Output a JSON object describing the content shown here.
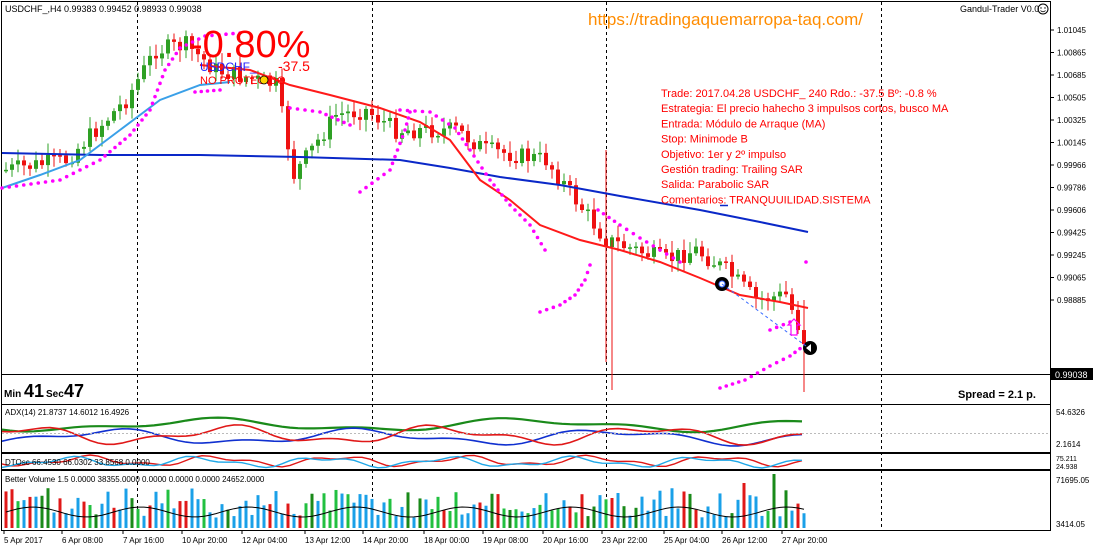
{
  "main": {
    "header": "USDCHF_,H4  0.99383 0.99452 0.98933 0.99038",
    "watermark": "https://tradingaquemarropa-taq.com/",
    "indicator_name": "Gandul-Trader V0.0",
    "big_percent": "-0.80%",
    "symbol_label": "USDCHF_",
    "pips": "-37.5",
    "no_protegido": "NO PROTEGIDO",
    "price_labels": [
      "1.01045",
      "1.00865",
      "1.00685",
      "1.00505",
      "1.00325",
      "1.00145",
      "0.99966",
      "0.99786",
      "0.99606",
      "0.99425",
      "0.99245",
      "0.99065",
      "0.98885"
    ],
    "current_price": "0.99038",
    "timer": {
      "min_label": "Min",
      "min": "41",
      "sec_label": "Sec",
      "sec": "47"
    },
    "spread": "Spread = 2.1 p.",
    "trade_info": [
      "Trade: 2017.04.28 USDCHF_ 240  Rdo.: -37.5  Bº: -0.8 %",
      "Estrategia: El precio hahecho 3 impulsos cortos, busco MA",
      "Entrada: Módulo de Arraque (MA)",
      "Stop: Minimode B",
      "Objetivo: 1er y 2º impulso",
      "Gestión trading: Trailing SAR",
      "Salida: Parabolic SAR",
      "Comentarios: TRANQUUILIDAD.SISTEMA"
    ]
  },
  "adx": {
    "label": "ADX(14) 21.8737 14.6012 16.4926",
    "scale": [
      "54.6326",
      "2.1614"
    ]
  },
  "dtosc": {
    "label": "DTOsc 66.4530 66.0302 33.8568 0.0000",
    "scale": [
      "75.211",
      "24.938"
    ]
  },
  "volume": {
    "label": "Better Volume 1.5 0.0000 38355.0000 0.0000 0.0000 0.0000 24652.0000",
    "scale": [
      "71695.05",
      "3414.05"
    ]
  },
  "time_axis": [
    "5 Apr 2017",
    "6 Apr 08:00",
    "7 Apr 16:00",
    "10 Apr 20:00",
    "12 Apr 04:00",
    "13 Apr 12:00",
    "14 Apr 20:00",
    "18 Apr 00:00",
    "19 Apr 08:00",
    "20 Apr 16:00",
    "23 Apr 22:00",
    "25 Apr 04:00",
    "26 Apr 12:00",
    "27 Apr 20:00"
  ],
  "colors": {
    "bull": "#2ea024",
    "bear": "#ee1111",
    "ma_fast": "#ff0000",
    "ma_mid": "#3aa0e8",
    "ma_slow": "#0a28c8",
    "sar": "#ff00ff",
    "accent": "#ff8c00"
  }
}
